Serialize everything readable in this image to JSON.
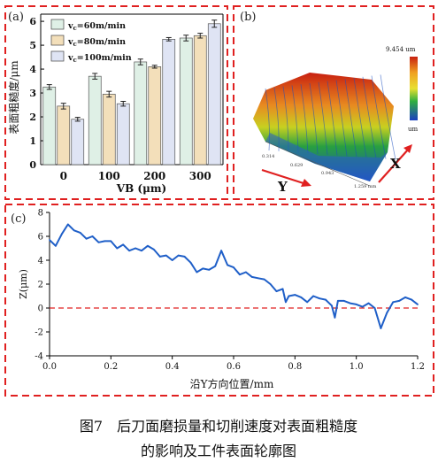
{
  "panels": {
    "a": {
      "label": "(a)"
    },
    "b": {
      "label": "(b)"
    },
    "c": {
      "label": "(c)"
    }
  },
  "surface_plot": {
    "max_label": "9.454 um",
    "unit_label": "um",
    "axis_x_label": "X",
    "axis_y_label": "Y",
    "edge_ticks": [
      "0.314",
      "0.629",
      "0.943",
      "1.259 mm"
    ],
    "colors": [
      "#c82010",
      "#e88a20",
      "#d8d820",
      "#28a040",
      "#1a4fbf"
    ]
  },
  "caption": {
    "line1": "图7　后刀面磨损量和切削速度对表面粗糙度",
    "line2": "的影响及工件表面轮廓图"
  },
  "chart_data": [
    {
      "type": "bar",
      "xlabel": "VB (μm)",
      "ylabel": "表面粗糙度/μm",
      "categories": [
        "0",
        "100",
        "200",
        "300"
      ],
      "ylim": [
        0,
        6.3
      ],
      "yticks": [
        0,
        1,
        2,
        3,
        4,
        5,
        6
      ],
      "legend_position": "top-left",
      "grid": false,
      "series": [
        {
          "name": "v_c=60m/min",
          "color": "#dff0e6",
          "values": [
            3.25,
            3.7,
            4.3,
            5.3
          ],
          "errors": [
            0.1,
            0.12,
            0.12,
            0.12
          ]
        },
        {
          "name": "v_c=80m/min",
          "color": "#f3dfba",
          "values": [
            2.45,
            2.95,
            4.1,
            5.4
          ],
          "errors": [
            0.12,
            0.12,
            0.06,
            0.1
          ]
        },
        {
          "name": "v_c=100m/min",
          "color": "#dfe4f4",
          "values": [
            1.9,
            2.55,
            5.25,
            5.9
          ],
          "errors": [
            0.08,
            0.1,
            0.07,
            0.15
          ]
        }
      ]
    },
    {
      "type": "line",
      "xlabel": "沿Y方向位置/mm",
      "ylabel": "Z(μm)",
      "xlim": [
        0,
        1.2
      ],
      "ylim": [
        -4,
        8
      ],
      "xticks": [
        0.0,
        0.2,
        0.4,
        0.6,
        0.8,
        1.0,
        1.2
      ],
      "yticks": [
        -4,
        -2,
        0,
        2,
        4,
        6,
        8
      ],
      "reference_line": 0,
      "series": [
        {
          "color": "#1f5fc8",
          "x": [
            0.0,
            0.02,
            0.04,
            0.06,
            0.08,
            0.1,
            0.12,
            0.14,
            0.16,
            0.18,
            0.2,
            0.22,
            0.24,
            0.26,
            0.28,
            0.3,
            0.32,
            0.34,
            0.36,
            0.38,
            0.4,
            0.42,
            0.44,
            0.46,
            0.48,
            0.5,
            0.52,
            0.54,
            0.56,
            0.58,
            0.6,
            0.62,
            0.64,
            0.66,
            0.68,
            0.7,
            0.72,
            0.74,
            0.76,
            0.77,
            0.78,
            0.8,
            0.82,
            0.84,
            0.86,
            0.88,
            0.9,
            0.92,
            0.93,
            0.94,
            0.96,
            0.98,
            1.0,
            1.02,
            1.04,
            1.06,
            1.08,
            1.1,
            1.12,
            1.14,
            1.16,
            1.18,
            1.2
          ],
          "y": [
            5.7,
            5.2,
            6.2,
            7.0,
            6.5,
            6.3,
            5.8,
            6.0,
            5.5,
            5.6,
            5.6,
            5.0,
            5.3,
            4.8,
            5.0,
            4.8,
            5.2,
            4.9,
            4.3,
            4.4,
            4.0,
            4.4,
            4.3,
            3.8,
            3.0,
            3.3,
            3.2,
            3.5,
            4.8,
            3.6,
            3.4,
            2.8,
            3.0,
            2.6,
            2.5,
            2.4,
            2.0,
            1.4,
            1.6,
            0.5,
            1.0,
            1.1,
            0.9,
            0.5,
            1.0,
            0.8,
            0.7,
            0.2,
            -0.8,
            0.6,
            0.6,
            0.4,
            0.3,
            0.1,
            0.4,
            0.0,
            -1.7,
            -0.4,
            0.5,
            0.6,
            0.9,
            0.7,
            0.3
          ]
        }
      ]
    }
  ]
}
